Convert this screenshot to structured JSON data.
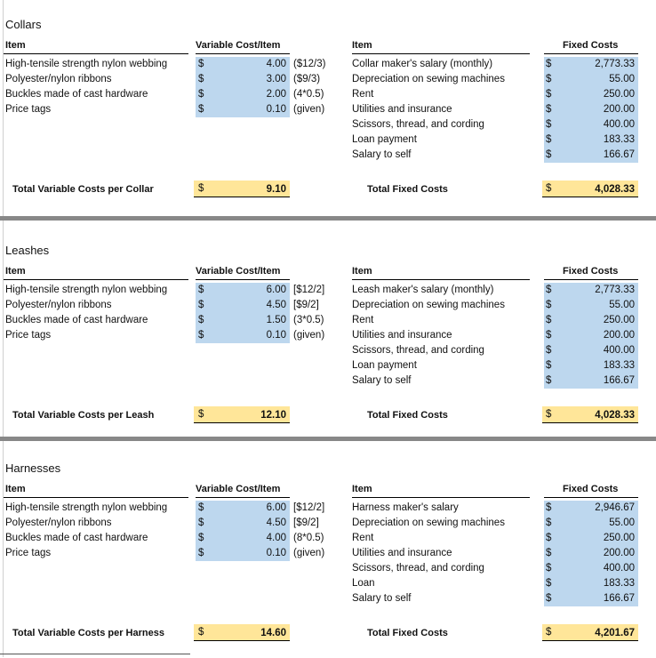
{
  "columns": {
    "item": "Item",
    "variable_cost": "Variable Cost/Item",
    "item2": "Item",
    "fixed_costs": "Fixed Costs"
  },
  "currency": "$",
  "sections": [
    {
      "title": "Collars",
      "variable_items": [
        {
          "name": "High-tensile strength nylon webbing",
          "value": "4.00",
          "note": "($12/3)"
        },
        {
          "name": "Polyester/nylon ribbons",
          "value": "3.00",
          "note": "($9/3)"
        },
        {
          "name": "Buckles made of cast hardware",
          "value": "2.00",
          "note": "(4*0.5)"
        },
        {
          "name": "Price tags",
          "value": "0.10",
          "note": "(given)"
        }
      ],
      "fixed_items": [
        {
          "name": "Collar maker's salary (monthly)",
          "value": "2,773.33"
        },
        {
          "name": "Depreciation on sewing machines",
          "value": "55.00"
        },
        {
          "name": "Rent",
          "value": "250.00"
        },
        {
          "name": "Utilities and insurance",
          "value": "200.00"
        },
        {
          "name": "Scissors, thread, and cording",
          "value": "400.00"
        },
        {
          "name": "Loan payment",
          "value": "183.33"
        },
        {
          "name": "Salary to self",
          "value": "166.67"
        }
      ],
      "total_variable_label": "Total Variable Costs per Collar",
      "total_variable": "9.10",
      "total_fixed_label": "Total Fixed Costs",
      "total_fixed": "4,028.33"
    },
    {
      "title": "Leashes",
      "variable_items": [
        {
          "name": "High-tensile strength nylon webbing",
          "value": "6.00",
          "note": "[$12/2]"
        },
        {
          "name": "Polyester/nylon ribbons",
          "value": "4.50",
          "note": "[$9/2]"
        },
        {
          "name": "Buckles made of cast hardware",
          "value": "1.50",
          "note": "(3*0.5)"
        },
        {
          "name": "Price tags",
          "value": "0.10",
          "note": "(given)"
        }
      ],
      "fixed_items": [
        {
          "name": "Leash maker's salary (monthly)",
          "value": "2,773.33"
        },
        {
          "name": "Depreciation on sewing machines",
          "value": "55.00"
        },
        {
          "name": "Rent",
          "value": "250.00"
        },
        {
          "name": "Utilities and insurance",
          "value": "200.00"
        },
        {
          "name": "Scissors, thread, and cording",
          "value": "400.00"
        },
        {
          "name": "Loan payment",
          "value": "183.33"
        },
        {
          "name": "Salary to self",
          "value": "166.67"
        }
      ],
      "total_variable_label": "Total Variable Costs per Leash",
      "total_variable": "12.10",
      "total_fixed_label": "Total Fixed Costs",
      "total_fixed": "4,028.33"
    },
    {
      "title": "Harnesses",
      "variable_items": [
        {
          "name": "High-tensile strength nylon webbing",
          "value": "6.00",
          "note": "[$12/2]"
        },
        {
          "name": "Polyester/nylon ribbons",
          "value": "4.50",
          "note": "[$9/2]"
        },
        {
          "name": "Buckles made of cast hardware",
          "value": "4.00",
          "note": "(8*0.5)"
        },
        {
          "name": "Price tags",
          "value": "0.10",
          "note": "(given)"
        }
      ],
      "fixed_items": [
        {
          "name": "Harness maker's salary",
          "value": "2,946.67"
        },
        {
          "name": "Depreciation on sewing machines",
          "value": "55.00"
        },
        {
          "name": "Rent",
          "value": "250.00"
        },
        {
          "name": "Utilities and insurance",
          "value": "200.00"
        },
        {
          "name": "Scissors, thread, and cording",
          "value": "400.00"
        },
        {
          "name": "Loan",
          "value": "183.33"
        },
        {
          "name": "Salary to self",
          "value": "166.67"
        }
      ],
      "total_variable_label": "Total Variable Costs per Harness",
      "total_variable": "14.60",
      "total_fixed_label": "Total Fixed Costs",
      "total_fixed": "4,201.67"
    }
  ]
}
